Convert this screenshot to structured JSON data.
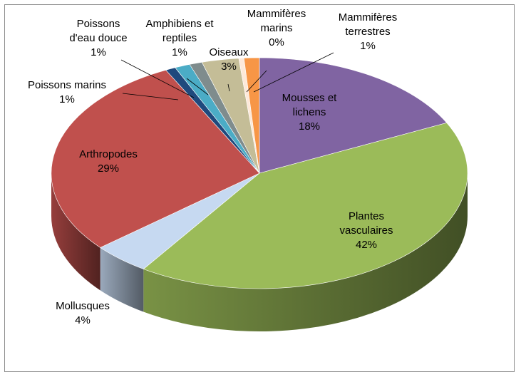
{
  "chart_data": {
    "type": "pie",
    "title": "",
    "legend": "none",
    "slices": [
      {
        "label_lines": [
          "Mousses et",
          "lichens"
        ],
        "value_label": "18%",
        "value": 18,
        "color": "#8064a2"
      },
      {
        "label_lines": [
          "Plantes",
          "vasculaires"
        ],
        "value_label": "42%",
        "value": 42,
        "color": "#9bbb59"
      },
      {
        "label_lines": [
          "Mollusques"
        ],
        "value_label": "4%",
        "value": 4.5,
        "color": "#c6d9f1"
      },
      {
        "label_lines": [
          "Arthropodes"
        ],
        "value_label": "29%",
        "value": 29,
        "color": "#c0504d"
      },
      {
        "label_lines": [
          "Poissons marins"
        ],
        "value_label": "1%",
        "value": 0.8,
        "color": "#1f497d"
      },
      {
        "label_lines": [
          "Poissons",
          "d'eau douce"
        ],
        "value_label": "1%",
        "value": 1.2,
        "color": "#4bacc6"
      },
      {
        "label_lines": [
          "Amphibiens et",
          "reptiles"
        ],
        "value_label": "1%",
        "value": 1.0,
        "color": "#7f8c8d"
      },
      {
        "label_lines": [
          "Oiseaux"
        ],
        "value_label": "3%",
        "value": 2.9,
        "color": "#c4bd97"
      },
      {
        "label_lines": [
          "Mammifères",
          "marins"
        ],
        "value_label": "0%",
        "value": 0.4,
        "color": "#fde9d9"
      },
      {
        "label_lines": [
          "Mammifères",
          "terrestres"
        ],
        "value_label": "1%",
        "value": 1.2,
        "color": "#f79646"
      }
    ]
  }
}
